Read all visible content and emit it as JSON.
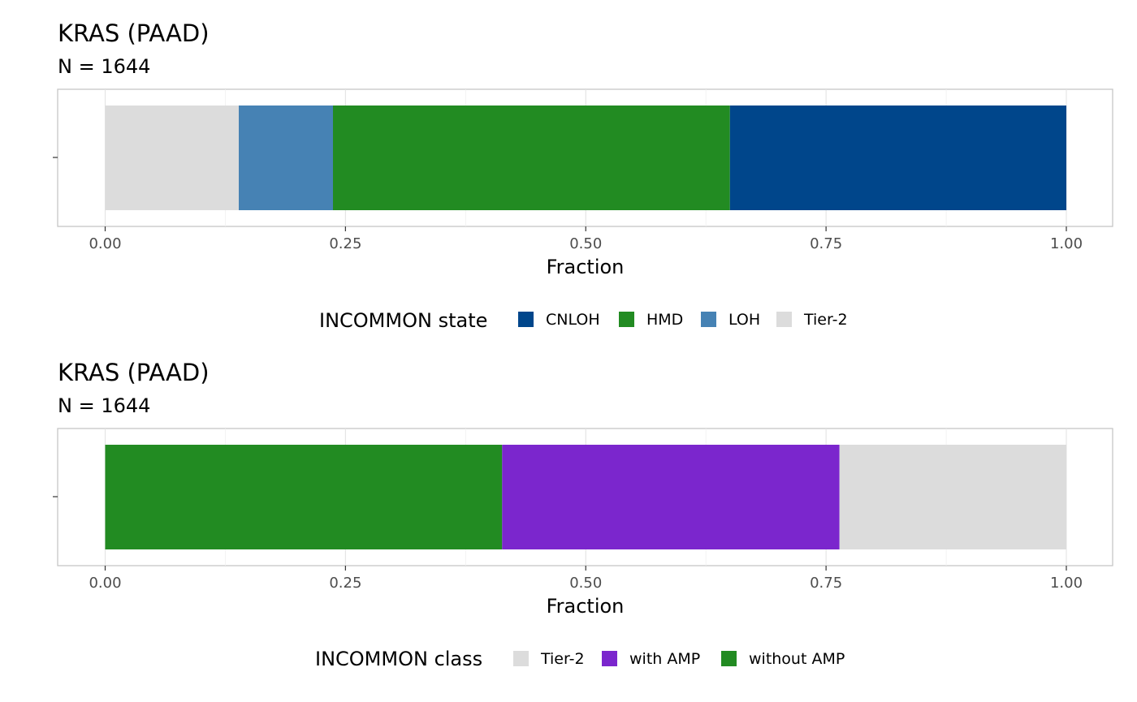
{
  "chart_data": [
    {
      "type": "bar",
      "orientation": "horizontal-stacked",
      "title": "KRAS (PAAD)",
      "subtitle": "N = 1644",
      "xlabel": "Fraction",
      "ylabel": "",
      "xlim": [
        0,
        1
      ],
      "ticks": [
        0,
        0.25,
        0.5,
        0.75,
        1
      ],
      "tick_labels": [
        "0.00",
        "0.25",
        "0.50",
        "0.75",
        "1.00"
      ],
      "grid": true,
      "legend": {
        "title": "INCOMMON state",
        "placement": "bottom",
        "entries": [
          "CNLOH",
          "HMD",
          "LOH",
          "Tier-2"
        ]
      },
      "segments": [
        {
          "name": "Tier-2",
          "value": 0.139,
          "color": "#dcdcdc"
        },
        {
          "name": "LOH",
          "value": 0.098,
          "color": "#4682b4"
        },
        {
          "name": "HMD",
          "value": 0.413,
          "color": "#228b22"
        },
        {
          "name": "CNLOH",
          "value": 0.35,
          "color": "#00468b"
        }
      ],
      "legend_colors": {
        "CNLOH": "#00468b",
        "HMD": "#228b22",
        "LOH": "#4682b4",
        "Tier-2": "#dcdcdc"
      }
    },
    {
      "type": "bar",
      "orientation": "horizontal-stacked",
      "title": "KRAS (PAAD)",
      "subtitle": "N = 1644",
      "xlabel": "Fraction",
      "ylabel": "",
      "xlim": [
        0,
        1
      ],
      "ticks": [
        0,
        0.25,
        0.5,
        0.75,
        1
      ],
      "tick_labels": [
        "0.00",
        "0.25",
        "0.50",
        "0.75",
        "1.00"
      ],
      "grid": true,
      "legend": {
        "title": "INCOMMON class",
        "placement": "bottom",
        "entries": [
          "Tier-2",
          "with AMP",
          "without AMP"
        ]
      },
      "segments": [
        {
          "name": "without AMP",
          "value": 0.413,
          "color": "#228b22"
        },
        {
          "name": "with AMP",
          "value": 0.351,
          "color": "#7b26cd"
        },
        {
          "name": "Tier-2",
          "value": 0.236,
          "color": "#dcdcdc"
        }
      ],
      "legend_colors": {
        "Tier-2": "#dcdcdc",
        "with AMP": "#7b26cd",
        "without AMP": "#228b22"
      }
    }
  ]
}
